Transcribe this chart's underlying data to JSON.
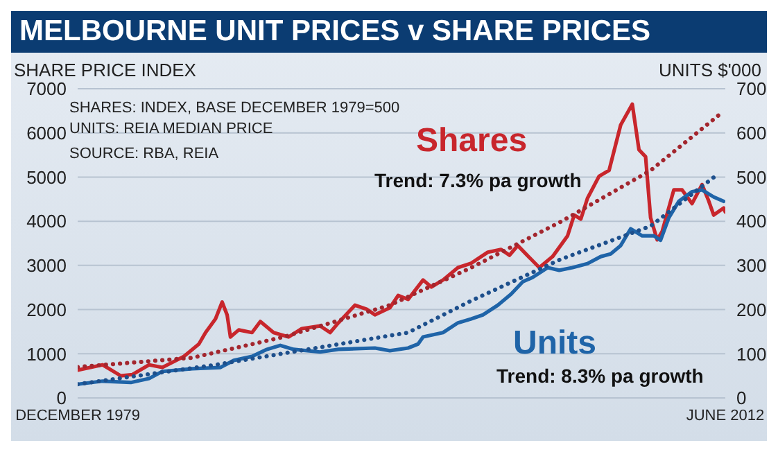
{
  "chart_data": {
    "type": "line",
    "title": "MELBOURNE UNIT PRICES v SHARE PRICES",
    "ylabel": "SHARE PRICE INDEX",
    "y2label": "UNITS $'000",
    "annotations": [
      "SHARES: INDEX, BASE DECEMBER 1979=500",
      "UNITS: REIA MEDIAN PRICE",
      "SOURCE: RBA, REIA",
      "Trend: 7.3% pa growth",
      "Trend: 8.3% pa growth"
    ],
    "xlim": [
      "1979-12",
      "2012-06"
    ],
    "xticks": [
      {
        "value": "1979-12",
        "label": "DECEMBER 1979"
      },
      {
        "value": "2012-06",
        "label": "JUNE 2012"
      }
    ],
    "ylim": [
      0,
      7000
    ],
    "yticks": [
      0,
      1000,
      2000,
      3000,
      4000,
      5000,
      6000,
      7000
    ],
    "y2lim": [
      0,
      700
    ],
    "y2ticks": [
      0,
      100,
      200,
      300,
      400,
      500,
      600,
      700
    ],
    "grid": "y",
    "marker": "none",
    "series": [
      {
        "name": "Shares",
        "color": "#c8262c",
        "line_style": "solid",
        "x": [
          "1979-12",
          "1981-03",
          "1982-02",
          "1982-09",
          "1983-07",
          "1984-03",
          "1985-04",
          "1986-01",
          "1986-05",
          "1986-11",
          "1987-03",
          "1987-06",
          "1987-08",
          "1988-01",
          "1988-09",
          "1989-02",
          "1989-10",
          "1990-07",
          "1991-03",
          "1992-02",
          "1992-08",
          "1993-01",
          "1993-11",
          "1994-06",
          "1994-11",
          "1995-08",
          "1996-01",
          "1996-07",
          "1997-04",
          "1997-09",
          "1998-04",
          "1999-01",
          "1999-09",
          "2000-07",
          "2001-03",
          "2001-08",
          "2002-01",
          "2003-02",
          "2003-10",
          "2004-07",
          "2004-11",
          "2005-03",
          "2005-07",
          "2006-02",
          "2006-08",
          "2007-03",
          "2007-10",
          "2008-02",
          "2008-06",
          "2008-09",
          "2009-01",
          "2009-04",
          "2009-11",
          "2010-04",
          "2010-10",
          "2011-04",
          "2011-08",
          "2011-11",
          "2012-05",
          "2012-06"
        ],
        "values": [
          630,
          750,
          500,
          530,
          750,
          690,
          940,
          1220,
          1480,
          1790,
          2170,
          1880,
          1380,
          1540,
          1480,
          1730,
          1480,
          1380,
          1570,
          1630,
          1480,
          1700,
          2100,
          2010,
          1880,
          2040,
          2320,
          2230,
          2670,
          2510,
          2670,
          2950,
          3050,
          3300,
          3360,
          3230,
          3450,
          2950,
          3200,
          3670,
          4140,
          4050,
          4520,
          5020,
          5150,
          6180,
          6650,
          5620,
          5460,
          4080,
          3580,
          3770,
          4710,
          4710,
          4400,
          4830,
          4460,
          4140,
          4300,
          4210
        ]
      },
      {
        "name": "Units",
        "color": "#1f64a8",
        "line_style": "solid",
        "axis": "y2",
        "x": [
          "1979-12",
          "1981-03",
          "1982-08",
          "1983-07",
          "1984-03",
          "1985-09",
          "1987-02",
          "1987-10",
          "1988-09",
          "1989-06",
          "1990-02",
          "1990-10",
          "1992-02",
          "1993-01",
          "1994-11",
          "1995-08",
          "1996-07",
          "1997-01",
          "1997-04",
          "1998-04",
          "1999-01",
          "1999-09",
          "2000-04",
          "2001-01",
          "2001-09",
          "2002-04",
          "2002-10",
          "2003-07",
          "2004-02",
          "2004-10",
          "2005-07",
          "2006-03",
          "2006-09",
          "2007-03",
          "2007-09",
          "2008-04",
          "2008-11",
          "2009-03",
          "2009-08",
          "2010-02",
          "2010-10",
          "2011-04",
          "2011-11",
          "2012-05"
        ],
        "values": [
          31,
          38,
          35,
          44,
          60,
          66,
          69,
          85,
          94,
          110,
          119,
          110,
          104,
          110,
          113,
          107,
          113,
          122,
          138,
          148,
          170,
          179,
          188,
          210,
          235,
          263,
          273,
          295,
          289,
          295,
          304,
          320,
          326,
          345,
          383,
          367,
          367,
          357,
          408,
          445,
          467,
          471,
          455,
          445
        ]
      },
      {
        "color": "#a3262e",
        "line_style": "dotted",
        "x": [
          "1979-12",
          "1985-09",
          "1990-04",
          "1995-08",
          "1999-09",
          "2004-03",
          "2008-09",
          "2012-02"
        ],
        "values": [
          700,
          910,
          1380,
          2100,
          2950,
          3990,
          5150,
          6400
        ]
      },
      {
        "color": "#1d4f8c",
        "line_style": "dotted",
        "axis": "y2",
        "x": [
          "1979-12",
          "1986-11",
          "1996-07",
          "1999-09",
          "2004-03",
          "2008-09",
          "2012-02"
        ],
        "values": [
          31,
          75,
          148,
          220,
          314,
          389,
          508
        ]
      }
    ]
  }
}
